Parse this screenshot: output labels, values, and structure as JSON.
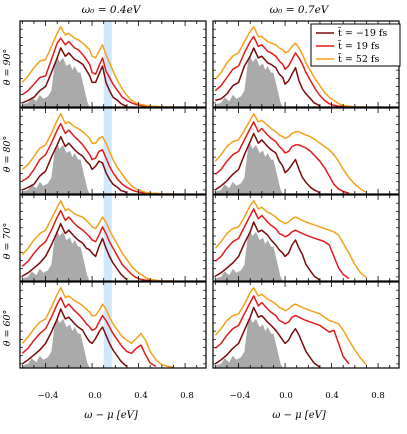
{
  "chart_data": {
    "type": "line",
    "column_titles": [
      "ω₀ = 0.4eV",
      "ω₀ = 0.7eV"
    ],
    "row_labels": [
      "θ = 90°",
      "θ = 80°",
      "θ = 70°",
      "θ = 60°"
    ],
    "xlabel": "ω − μ [eV]",
    "xlim": [
      -0.62,
      0.98
    ],
    "xticks": [
      -0.4,
      0.0,
      0.4,
      0.8
    ],
    "xtick_labels": [
      "−0.4",
      "0.0",
      "0.4",
      "0.8"
    ],
    "ylim": [
      0,
      1.05
    ],
    "highlight_band": {
      "column": 0,
      "x_range": [
        0.1,
        0.17
      ],
      "color": "#cfe8fb"
    },
    "legend": {
      "placement": "top-right",
      "panel": "row 0, column 1"
    },
    "colors": {
      "ground": "#aaaaaa",
      "series": [
        "#7b0a0a",
        "#e31a1c",
        "#f5a01a"
      ]
    },
    "ground_state": {
      "x": [
        -0.6,
        -0.55,
        -0.52,
        -0.48,
        -0.45,
        -0.42,
        -0.38,
        -0.35,
        -0.32,
        -0.3,
        -0.28,
        -0.25,
        -0.22,
        -0.19,
        -0.17,
        -0.15,
        -0.12,
        -0.1,
        -0.08,
        -0.06,
        -0.04,
        -0.02
      ],
      "y": [
        0.03,
        0.05,
        0.12,
        0.07,
        0.15,
        0.1,
        0.13,
        0.2,
        0.55,
        0.62,
        0.55,
        0.6,
        0.5,
        0.53,
        0.45,
        0.5,
        0.42,
        0.42,
        0.3,
        0.18,
        0.06,
        0.0
      ]
    },
    "series": [
      {
        "name": "t̃ = −19 fs",
        "x": [
          -0.6,
          -0.55,
          -0.5,
          -0.45,
          -0.4,
          -0.35,
          -0.3,
          -0.27,
          -0.23,
          -0.2,
          -0.15,
          -0.12,
          -0.08,
          -0.05,
          -0.02,
          0.0,
          0.03,
          0.06,
          0.09,
          0.12,
          0.15,
          0.18,
          0.22,
          0.25,
          0.28,
          0.3
        ],
        "y": [
          [
            0.05,
            0.08,
            0.12,
            0.2,
            0.25,
            0.42,
            0.6,
            0.72,
            0.62,
            0.66,
            0.58,
            0.56,
            0.52,
            0.45,
            0.38,
            0.3,
            0.3,
            0.4,
            0.5,
            0.3,
            0.2,
            0.12,
            0.08,
            0.04,
            0.02,
            0.01
          ],
          [
            0.08,
            0.1,
            0.16,
            0.26,
            0.3,
            0.5,
            0.62,
            0.72,
            0.6,
            0.62,
            0.54,
            0.52,
            0.48,
            0.4,
            0.36,
            0.28,
            0.32,
            0.4,
            0.48,
            0.32,
            0.22,
            0.16,
            0.1,
            0.05,
            0.03,
            0.01
          ],
          [
            0.05,
            0.08,
            0.12,
            0.22,
            0.28,
            0.45,
            0.6,
            0.7,
            0.58,
            0.62,
            0.54,
            0.5,
            0.46,
            0.4,
            0.36,
            0.3,
            0.34,
            0.4,
            0.38,
            0.26,
            0.18,
            0.12,
            0.08,
            0.04,
            0.03,
            0.01
          ],
          [
            0.05,
            0.1,
            0.16,
            0.24,
            0.3,
            0.48,
            0.64,
            0.74,
            0.62,
            0.66,
            0.58,
            0.54,
            0.5,
            0.4,
            0.34,
            0.26,
            0.3,
            0.36,
            0.42,
            0.3,
            0.2,
            0.14,
            0.08,
            0.05,
            0.03,
            0.01
          ],
          [
            0.06,
            0.1,
            0.16,
            0.22,
            0.3,
            0.44,
            0.6,
            0.7,
            0.58,
            0.62,
            0.54,
            0.5,
            0.46,
            0.4,
            0.38,
            0.34,
            0.3,
            0.42,
            0.52,
            0.4,
            0.3,
            0.22,
            0.14,
            0.08,
            0.04,
            0.02
          ],
          [
            0.06,
            0.1,
            0.16,
            0.22,
            0.3,
            0.46,
            0.6,
            0.72,
            0.6,
            0.62,
            0.56,
            0.5,
            0.44,
            0.38,
            0.34,
            0.3,
            0.34,
            0.44,
            0.5,
            0.4,
            0.32,
            0.2,
            0.12,
            0.06,
            0.03,
            0.01
          ],
          [
            0.05,
            0.1,
            0.16,
            0.22,
            0.3,
            0.44,
            0.6,
            0.72,
            0.6,
            0.62,
            0.54,
            0.5,
            0.46,
            0.38,
            0.32,
            0.3,
            0.36,
            0.44,
            0.5,
            0.4,
            0.3,
            0.22,
            0.14,
            0.08,
            0.04,
            0.02
          ],
          [
            0.05,
            0.1,
            0.16,
            0.24,
            0.3,
            0.46,
            0.62,
            0.74,
            0.62,
            0.64,
            0.56,
            0.52,
            0.46,
            0.4,
            0.34,
            0.3,
            0.34,
            0.42,
            0.48,
            0.4,
            0.3,
            0.2,
            0.12,
            0.06,
            0.03,
            0.01
          ]
        ]
      },
      {
        "name": "t̃ = 19 fs",
        "x": [
          -0.6,
          -0.55,
          -0.5,
          -0.45,
          -0.4,
          -0.35,
          -0.3,
          -0.27,
          -0.23,
          -0.2,
          -0.15,
          -0.12,
          -0.08,
          -0.05,
          -0.02,
          0.0,
          0.03,
          0.06,
          0.09,
          0.12,
          0.15,
          0.18,
          0.22,
          0.26,
          0.3,
          0.34,
          0.38,
          0.42,
          0.46,
          0.5,
          0.55
        ],
        "y": [
          [
            0.15,
            0.2,
            0.28,
            0.36,
            0.38,
            0.58,
            0.78,
            0.84,
            0.76,
            0.8,
            0.72,
            0.7,
            0.64,
            0.58,
            0.52,
            0.42,
            0.4,
            0.5,
            0.6,
            0.44,
            0.36,
            0.28,
            0.2,
            0.12,
            0.08,
            0.05,
            0.03,
            0.02,
            0.01,
            0.01,
            0.0
          ],
          [
            0.2,
            0.26,
            0.36,
            0.46,
            0.5,
            0.66,
            0.8,
            0.86,
            0.74,
            0.76,
            0.68,
            0.66,
            0.62,
            0.56,
            0.52,
            0.46,
            0.5,
            0.58,
            0.66,
            0.6,
            0.52,
            0.42,
            0.32,
            0.22,
            0.14,
            0.08,
            0.04,
            0.02,
            0.01,
            0.01,
            0.0
          ],
          [
            0.16,
            0.2,
            0.3,
            0.42,
            0.48,
            0.62,
            0.78,
            0.86,
            0.74,
            0.78,
            0.7,
            0.66,
            0.6,
            0.54,
            0.48,
            0.42,
            0.44,
            0.52,
            0.54,
            0.44,
            0.34,
            0.26,
            0.18,
            0.12,
            0.08,
            0.05,
            0.03,
            0.02,
            0.01,
            0.01,
            0.0
          ],
          [
            0.24,
            0.3,
            0.4,
            0.48,
            0.52,
            0.66,
            0.8,
            0.88,
            0.76,
            0.8,
            0.72,
            0.68,
            0.64,
            0.58,
            0.54,
            0.5,
            0.52,
            0.58,
            0.6,
            0.6,
            0.58,
            0.56,
            0.52,
            0.46,
            0.4,
            0.32,
            0.22,
            0.12,
            0.06,
            0.03,
            0.01
          ],
          [
            0.18,
            0.24,
            0.34,
            0.42,
            0.48,
            0.62,
            0.78,
            0.86,
            0.74,
            0.78,
            0.7,
            0.66,
            0.62,
            0.58,
            0.54,
            0.5,
            0.48,
            0.56,
            0.66,
            0.58,
            0.48,
            0.4,
            0.3,
            0.2,
            0.14,
            0.08,
            0.04,
            0.02,
            0.01,
            0.01,
            0.0
          ],
          [
            0.24,
            0.3,
            0.4,
            0.48,
            0.52,
            0.66,
            0.8,
            0.88,
            0.76,
            0.8,
            0.72,
            0.68,
            0.64,
            0.58,
            0.56,
            0.54,
            0.56,
            0.6,
            0.62,
            0.6,
            0.58,
            0.56,
            0.54,
            0.52,
            0.5,
            0.48,
            0.44,
            0.3,
            0.16,
            0.08,
            0.03
          ],
          [
            0.18,
            0.24,
            0.34,
            0.42,
            0.48,
            0.62,
            0.78,
            0.86,
            0.74,
            0.78,
            0.7,
            0.66,
            0.6,
            0.54,
            0.5,
            0.46,
            0.48,
            0.56,
            0.64,
            0.58,
            0.5,
            0.42,
            0.34,
            0.26,
            0.2,
            0.18,
            0.24,
            0.28,
            0.16,
            0.06,
            0.02
          ],
          [
            0.24,
            0.3,
            0.4,
            0.48,
            0.52,
            0.66,
            0.8,
            0.88,
            0.76,
            0.8,
            0.72,
            0.68,
            0.64,
            0.58,
            0.56,
            0.54,
            0.56,
            0.62,
            0.64,
            0.62,
            0.6,
            0.58,
            0.56,
            0.54,
            0.52,
            0.48,
            0.44,
            0.46,
            0.3,
            0.14,
            0.05
          ]
        ]
      },
      {
        "name": "t̃ = 52 fs",
        "x": [
          -0.6,
          -0.55,
          -0.5,
          -0.45,
          -0.4,
          -0.35,
          -0.3,
          -0.27,
          -0.23,
          -0.2,
          -0.15,
          -0.12,
          -0.08,
          -0.05,
          -0.02,
          0.0,
          0.03,
          0.06,
          0.09,
          0.12,
          0.15,
          0.18,
          0.22,
          0.26,
          0.3,
          0.34,
          0.38,
          0.42,
          0.46,
          0.5,
          0.55,
          0.6,
          0.65,
          0.7
        ],
        "y": [
          [
            0.3,
            0.38,
            0.48,
            0.56,
            0.58,
            0.74,
            0.9,
            0.98,
            0.88,
            0.9,
            0.84,
            0.82,
            0.78,
            0.74,
            0.7,
            0.62,
            0.6,
            0.68,
            0.76,
            0.64,
            0.54,
            0.44,
            0.32,
            0.22,
            0.14,
            0.08,
            0.05,
            0.03,
            0.02,
            0.01,
            0.01,
            0.0,
            0.0,
            0.0
          ],
          [
            0.34,
            0.42,
            0.54,
            0.62,
            0.66,
            0.8,
            0.92,
            0.98,
            0.86,
            0.86,
            0.8,
            0.78,
            0.76,
            0.72,
            0.7,
            0.66,
            0.68,
            0.74,
            0.78,
            0.72,
            0.64,
            0.54,
            0.44,
            0.34,
            0.26,
            0.18,
            0.12,
            0.08,
            0.04,
            0.02,
            0.01,
            0.0,
            0.0,
            0.0
          ],
          [
            0.3,
            0.36,
            0.46,
            0.56,
            0.6,
            0.74,
            0.9,
            0.98,
            0.86,
            0.88,
            0.82,
            0.8,
            0.76,
            0.72,
            0.68,
            0.62,
            0.62,
            0.68,
            0.7,
            0.62,
            0.52,
            0.42,
            0.32,
            0.24,
            0.16,
            0.1,
            0.06,
            0.04,
            0.02,
            0.01,
            0.01,
            0.0,
            0.0,
            0.0
          ],
          [
            0.4,
            0.48,
            0.58,
            0.64,
            0.66,
            0.78,
            0.9,
            0.98,
            0.88,
            0.9,
            0.84,
            0.8,
            0.76,
            0.72,
            0.7,
            0.68,
            0.7,
            0.74,
            0.76,
            0.76,
            0.74,
            0.72,
            0.7,
            0.66,
            0.62,
            0.58,
            0.54,
            0.48,
            0.4,
            0.3,
            0.2,
            0.12,
            0.06,
            0.02
          ],
          [
            0.32,
            0.4,
            0.5,
            0.58,
            0.62,
            0.76,
            0.9,
            0.98,
            0.86,
            0.88,
            0.82,
            0.8,
            0.78,
            0.74,
            0.7,
            0.66,
            0.64,
            0.7,
            0.78,
            0.72,
            0.62,
            0.54,
            0.44,
            0.34,
            0.26,
            0.18,
            0.12,
            0.08,
            0.04,
            0.02,
            0.01,
            0.0,
            0.0,
            0.0
          ],
          [
            0.4,
            0.48,
            0.58,
            0.64,
            0.66,
            0.78,
            0.92,
            0.98,
            0.88,
            0.9,
            0.84,
            0.82,
            0.78,
            0.74,
            0.72,
            0.7,
            0.72,
            0.76,
            0.78,
            0.76,
            0.74,
            0.72,
            0.7,
            0.68,
            0.66,
            0.64,
            0.62,
            0.6,
            0.56,
            0.46,
            0.34,
            0.2,
            0.1,
            0.04
          ],
          [
            0.3,
            0.38,
            0.48,
            0.56,
            0.6,
            0.74,
            0.9,
            0.98,
            0.86,
            0.88,
            0.82,
            0.8,
            0.76,
            0.72,
            0.68,
            0.64,
            0.64,
            0.7,
            0.78,
            0.72,
            0.62,
            0.54,
            0.46,
            0.38,
            0.34,
            0.3,
            0.36,
            0.42,
            0.34,
            0.2,
            0.1,
            0.04,
            0.02,
            0.01
          ],
          [
            0.4,
            0.48,
            0.58,
            0.64,
            0.66,
            0.78,
            0.92,
            0.98,
            0.88,
            0.9,
            0.84,
            0.82,
            0.78,
            0.74,
            0.72,
            0.7,
            0.72,
            0.76,
            0.78,
            0.76,
            0.74,
            0.72,
            0.7,
            0.68,
            0.66,
            0.62,
            0.58,
            0.56,
            0.54,
            0.46,
            0.34,
            0.22,
            0.12,
            0.04
          ]
        ]
      }
    ]
  }
}
